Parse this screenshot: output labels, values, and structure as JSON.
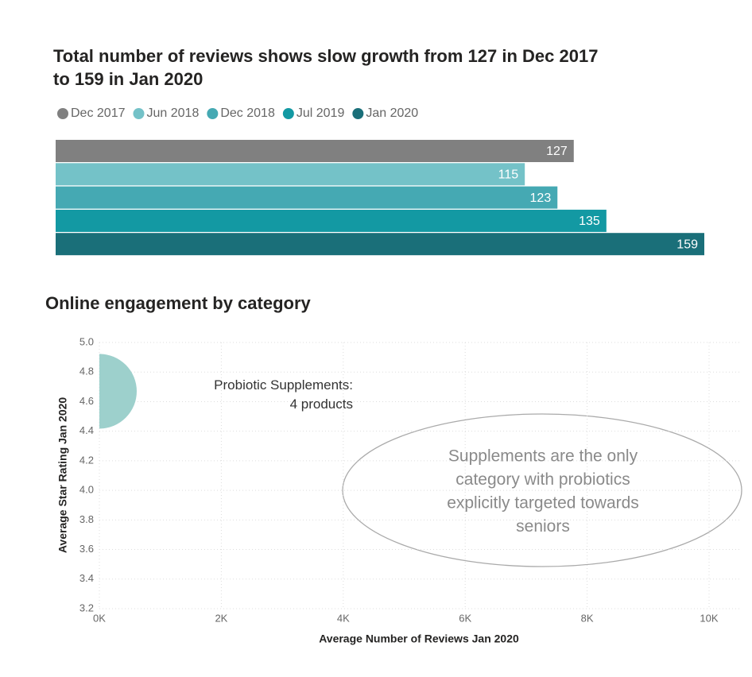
{
  "chart_data": [
    {
      "type": "bar",
      "orientation": "horizontal",
      "title": [
        "Total number of reviews shows slow growth from 127 in Dec 2017",
        "to 159 in Jan 2020"
      ],
      "categories": [
        null
      ],
      "legend": "top-left",
      "series": [
        {
          "name": "Dec 2017",
          "color": "#808080",
          "values": [
            127
          ]
        },
        {
          "name": "Jun 2018",
          "color": "#74c2c8",
          "values": [
            115
          ]
        },
        {
          "name": "Dec 2018",
          "color": "#45a9b3",
          "values": [
            123
          ]
        },
        {
          "name": "Jul 2019",
          "color": "#1399a3",
          "values": [
            135
          ]
        },
        {
          "name": "Jan 2020",
          "color": "#1a6f79",
          "values": [
            159
          ]
        }
      ]
    },
    {
      "type": "scatter",
      "title": "Online engagement by category",
      "x_label": "Average Number of Reviews Jan 2020",
      "y_label": "Average Star Rating Jan 2020",
      "x": [
        0
      ],
      "values": [
        4.67
      ],
      "size": [
        4
      ],
      "color": "#9dd0cc",
      "point_labels": [
        [
          "Probiotic Supplements:",
          "4 products"
        ]
      ],
      "annotation": [
        "Supplements are the only",
        "category with probiotics",
        "explicitly targeted towards",
        "seniors"
      ],
      "xlim": [
        0,
        10000
      ],
      "xticks": [
        {
          "value": 0,
          "label": "0K"
        },
        {
          "value": 2000,
          "label": "2K"
        },
        {
          "value": 4000,
          "label": "4K"
        },
        {
          "value": 6000,
          "label": "6K"
        },
        {
          "value": 8000,
          "label": "8K"
        },
        {
          "value": 10000,
          "label": "10K"
        }
      ],
      "ylim": [
        3.2,
        5.0
      ],
      "yticks": [
        3.2,
        3.4,
        3.6,
        3.8,
        {
          "value": 4,
          "label": "4.0"
        },
        4.2,
        4.4,
        4.6,
        4.8,
        {
          "value": 5,
          "label": "5.0"
        }
      ],
      "grid": true
    }
  ]
}
